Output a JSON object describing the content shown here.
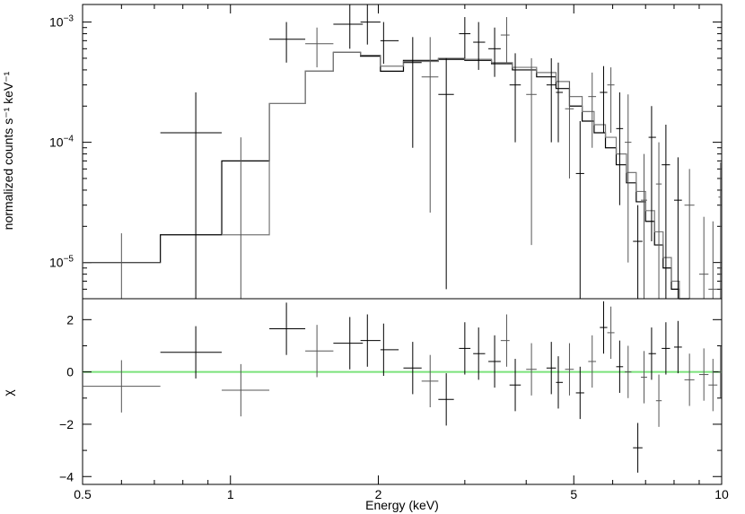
{
  "chart_data": [
    {
      "type": "scatter",
      "panel": "spectrum",
      "xscale": "log",
      "yscale": "log",
      "xlim": [
        0.5,
        10
      ],
      "ylim": [
        5e-06,
        0.0014
      ],
      "ylabel": "normalized counts s⁻¹ keV⁻¹",
      "ytick_labels": [
        {
          "value": 1e-05,
          "base": "10",
          "exp": "−5"
        },
        {
          "value": 0.0001,
          "base": "10",
          "exp": "−4"
        },
        {
          "value": 0.001,
          "base": "10",
          "exp": "−3"
        }
      ],
      "series": [
        {
          "color": "#000000",
          "points": [
            {
              "x": 0.85,
              "xlo": 0.72,
              "xhi": 0.96,
              "y": 0.00012,
              "ylo": 3e-06,
              "yhi": 0.00026
            },
            {
              "x": 1.3,
              "xlo": 1.2,
              "xhi": 1.42,
              "y": 0.00072,
              "ylo": 0.00046,
              "yhi": 0.001
            },
            {
              "x": 1.75,
              "xlo": 1.62,
              "xhi": 1.86,
              "y": 0.00096,
              "ylo": 0.0006,
              "yhi": 0.0014
            },
            {
              "x": 1.9,
              "xlo": 1.84,
              "xhi": 2.02,
              "y": 0.001,
              "ylo": 0.00065,
              "yhi": 0.0014
            },
            {
              "x": 2.05,
              "xlo": 2.02,
              "xhi": 2.2,
              "y": 0.0007,
              "ylo": 0.00045,
              "yhi": 0.001
            },
            {
              "x": 2.35,
              "xlo": 2.25,
              "xhi": 2.45,
              "y": 0.00046,
              "ylo": 9e-05,
              "yhi": 0.00075
            },
            {
              "x": 2.75,
              "xlo": 2.65,
              "xhi": 2.85,
              "y": 0.00025,
              "ylo": 6e-06,
              "yhi": 0.0005
            },
            {
              "x": 3.0,
              "xlo": 2.92,
              "xhi": 3.08,
              "y": 0.0008,
              "ylo": 0.0005,
              "yhi": 0.0011
            },
            {
              "x": 3.2,
              "xlo": 3.12,
              "xhi": 3.3,
              "y": 0.00068,
              "ylo": 0.0004,
              "yhi": 0.001
            },
            {
              "x": 3.45,
              "xlo": 3.35,
              "xhi": 3.55,
              "y": 0.0006,
              "ylo": 0.00035,
              "yhi": 0.0009
            },
            {
              "x": 3.8,
              "xlo": 3.7,
              "xhi": 3.9,
              "y": 0.0003,
              "ylo": 0.0001,
              "yhi": 0.00055
            },
            {
              "x": 4.5,
              "xlo": 4.4,
              "xhi": 4.6,
              "y": 0.0003,
              "ylo": 0.0001,
              "yhi": 0.0005
            },
            {
              "x": 4.65,
              "xlo": 4.6,
              "xhi": 4.75,
              "y": 0.00026,
              "ylo": 0.0001,
              "yhi": 0.00046
            },
            {
              "x": 5.15,
              "xlo": 5.05,
              "xhi": 5.25,
              "y": 5.5e-05,
              "ylo": 5e-06,
              "yhi": 0.00015
            },
            {
              "x": 5.75,
              "xlo": 5.65,
              "xhi": 5.85,
              "y": 0.00026,
              "ylo": 0.00012,
              "yhi": 0.00043
            },
            {
              "x": 6.2,
              "xlo": 6.1,
              "xhi": 6.3,
              "y": 0.00013,
              "ylo": 3e-05,
              "yhi": 0.00026
            },
            {
              "x": 6.75,
              "xlo": 6.6,
              "xhi": 6.9,
              "y": 1.5e-05,
              "ylo": 5e-06,
              "yhi": 3e-05
            },
            {
              "x": 7.2,
              "xlo": 7.1,
              "xhi": 7.35,
              "y": 0.00011,
              "ylo": 1.5e-05,
              "yhi": 0.0002
            },
            {
              "x": 7.7,
              "xlo": 7.55,
              "xhi": 7.85,
              "y": 6.5e-05,
              "ylo": 5e-06,
              "yhi": 0.00014
            },
            {
              "x": 8.15,
              "xlo": 8.0,
              "xhi": 8.3,
              "y": 3.3e-05,
              "ylo": 5e-06,
              "yhi": 7.5e-05
            }
          ]
        },
        {
          "color": "#555555",
          "points": [
            {
              "x": 0.6,
              "xlo": 0.5,
              "xhi": 0.72,
              "y": 1e-05,
              "ylo": 5e-06,
              "yhi": 1.75e-05
            },
            {
              "x": 1.05,
              "xlo": 0.96,
              "xhi": 1.2,
              "y": 5e-06,
              "ylo": 5e-06,
              "yhi": 0.00011
            },
            {
              "x": 1.5,
              "xlo": 1.42,
              "xhi": 1.62,
              "y": 0.00066,
              "ylo": 0.00042,
              "yhi": 0.0009
            },
            {
              "x": 2.55,
              "xlo": 2.45,
              "xhi": 2.65,
              "y": 0.00035,
              "ylo": 2.6e-05,
              "yhi": 0.00075
            },
            {
              "x": 3.65,
              "xlo": 3.55,
              "xhi": 3.7,
              "y": 0.00078,
              "ylo": 0.00045,
              "yhi": 0.0011
            },
            {
              "x": 4.1,
              "xlo": 4.0,
              "xhi": 4.2,
              "y": 0.00025,
              "ylo": 1.4e-05,
              "yhi": 0.0005
            },
            {
              "x": 4.9,
              "xlo": 4.8,
              "xhi": 5.0,
              "y": 0.00019,
              "ylo": 5e-05,
              "yhi": 0.00032
            },
            {
              "x": 5.45,
              "xlo": 5.35,
              "xhi": 5.55,
              "y": 0.00024,
              "ylo": 9e-05,
              "yhi": 0.00038
            },
            {
              "x": 5.95,
              "xlo": 5.85,
              "xhi": 6.05,
              "y": 0.0003,
              "ylo": 0.00012,
              "yhi": 0.00042
            },
            {
              "x": 6.45,
              "xlo": 6.35,
              "xhi": 6.55,
              "y": 0.0001,
              "ylo": 1e-05,
              "yhi": 0.00025
            },
            {
              "x": 6.95,
              "xlo": 6.85,
              "xhi": 7.05,
              "y": 3.3e-05,
              "ylo": 5e-06,
              "yhi": 8e-05
            },
            {
              "x": 7.45,
              "xlo": 7.35,
              "xhi": 7.55,
              "y": 4.5e-05,
              "ylo": 5e-06,
              "yhi": 0.0001
            },
            {
              "x": 8.6,
              "xlo": 8.4,
              "xhi": 8.8,
              "y": 3e-05,
              "ylo": 5e-06,
              "yhi": 6e-05
            },
            {
              "x": 9.2,
              "xlo": 9.0,
              "xhi": 9.4,
              "y": 8e-06,
              "ylo": 5e-06,
              "yhi": 2.4e-05
            },
            {
              "x": 9.6,
              "xlo": 9.4,
              "xhi": 9.8,
              "y": 6e-06,
              "ylo": 5e-06,
              "yhi": 2.2e-05
            },
            {
              "x": 9.95,
              "xlo": 9.85,
              "xhi": 10.0,
              "y": 3.5e-05,
              "ylo": 5e-06,
              "yhi": 6.8e-05
            }
          ]
        }
      ],
      "models": [
        {
          "color": "#000000",
          "steps": [
            [
              0.5,
              0.72,
              1e-05
            ],
            [
              0.72,
              0.96,
              1.7e-05
            ],
            [
              0.96,
              1.2,
              7e-05
            ],
            [
              1.2,
              1.42,
              0.00021
            ],
            [
              1.42,
              1.62,
              0.00039
            ],
            [
              1.62,
              1.84,
              0.00056
            ],
            [
              1.84,
              2.02,
              0.00052
            ],
            [
              2.02,
              2.25,
              0.00039
            ],
            [
              2.25,
              2.65,
              0.00048
            ],
            [
              2.65,
              3.0,
              0.00049
            ],
            [
              3.0,
              3.4,
              0.00048
            ],
            [
              3.4,
              3.75,
              0.00045
            ],
            [
              3.75,
              4.2,
              0.0004
            ],
            [
              4.2,
              4.6,
              0.00035
            ],
            [
              4.6,
              4.9,
              0.00028
            ],
            [
              4.9,
              5.2,
              0.0002
            ],
            [
              5.2,
              5.5,
              0.00015
            ],
            [
              5.5,
              5.8,
              0.00012
            ],
            [
              5.8,
              6.1,
              9e-05
            ],
            [
              6.1,
              6.4,
              6.5e-05
            ],
            [
              6.4,
              6.7,
              4.6e-05
            ],
            [
              6.7,
              7.0,
              3.2e-05
            ],
            [
              7.0,
              7.3,
              2.2e-05
            ],
            [
              7.3,
              7.6,
              1.4e-05
            ],
            [
              7.6,
              7.9,
              9e-06
            ],
            [
              7.9,
              8.2,
              6e-06
            ],
            [
              8.2,
              8.6,
              4.5e-06
            ]
          ]
        },
        {
          "color": "#777777",
          "steps": [
            [
              0.96,
              1.2,
              1.7e-05
            ],
            [
              1.2,
              1.42,
              0.00021
            ],
            [
              1.42,
              1.62,
              0.00039
            ],
            [
              1.62,
              1.84,
              0.00056
            ],
            [
              1.84,
              2.02,
              0.00053
            ],
            [
              2.02,
              2.25,
              0.00043
            ],
            [
              2.25,
              2.65,
              0.00047
            ],
            [
              2.65,
              3.0,
              0.0005
            ],
            [
              3.0,
              3.4,
              0.00049
            ],
            [
              3.4,
              3.75,
              0.00046
            ],
            [
              3.75,
              4.2,
              0.00042
            ],
            [
              4.2,
              4.6,
              0.00038
            ],
            [
              4.6,
              4.9,
              0.00032
            ],
            [
              4.9,
              5.2,
              0.00024
            ],
            [
              5.2,
              5.5,
              0.00018
            ],
            [
              5.5,
              5.8,
              0.00014
            ],
            [
              5.8,
              6.1,
              0.00011
            ],
            [
              6.1,
              6.4,
              8e-05
            ],
            [
              6.4,
              6.7,
              5.6e-05
            ],
            [
              6.7,
              7.0,
              3.9e-05
            ],
            [
              7.0,
              7.3,
              2.7e-05
            ],
            [
              7.3,
              7.6,
              1.8e-05
            ],
            [
              7.6,
              7.9,
              1.1e-05
            ],
            [
              7.9,
              8.2,
              7e-06
            ],
            [
              8.2,
              8.6,
              5e-06
            ]
          ]
        }
      ]
    },
    {
      "type": "scatter",
      "panel": "residuals",
      "xscale": "log",
      "xlim": [
        0.5,
        10
      ],
      "ylim": [
        -4.3,
        2.8
      ],
      "ylabel": "χ",
      "xlabel": "Energy (keV)",
      "yticks": [
        -4,
        -2,
        0,
        2
      ],
      "ytick_labels": [
        "−4",
        "−2",
        "0",
        "2"
      ],
      "xticks": [
        0.5,
        1,
        2,
        5,
        10
      ],
      "xtick_labels": [
        "0.5",
        "1",
        "2",
        "5",
        "10"
      ],
      "zero_line_color": "#7be27b",
      "series": [
        {
          "color": "#000000",
          "points": [
            {
              "x": 0.85,
              "xlo": 0.72,
              "xhi": 0.96,
              "y": 0.75,
              "ylo": -0.25,
              "yhi": 1.75
            },
            {
              "x": 1.3,
              "xlo": 1.2,
              "xhi": 1.42,
              "y": 1.65,
              "ylo": 0.65,
              "yhi": 2.65
            },
            {
              "x": 1.75,
              "xlo": 1.62,
              "xhi": 1.86,
              "y": 1.1,
              "ylo": 0.1,
              "yhi": 2.1
            },
            {
              "x": 1.9,
              "xlo": 1.84,
              "xhi": 2.02,
              "y": 1.2,
              "ylo": 0.2,
              "yhi": 2.2
            },
            {
              "x": 2.05,
              "xlo": 2.02,
              "xhi": 2.2,
              "y": 0.85,
              "ylo": -0.15,
              "yhi": 1.85
            },
            {
              "x": 2.35,
              "xlo": 2.25,
              "xhi": 2.45,
              "y": 0.15,
              "ylo": -0.85,
              "yhi": 1.15
            },
            {
              "x": 2.75,
              "xlo": 2.65,
              "xhi": 2.85,
              "y": -1.05,
              "ylo": -2.05,
              "yhi": -0.05
            },
            {
              "x": 3.0,
              "xlo": 2.92,
              "xhi": 3.08,
              "y": 0.9,
              "ylo": -0.1,
              "yhi": 1.9
            },
            {
              "x": 3.2,
              "xlo": 3.12,
              "xhi": 3.3,
              "y": 0.7,
              "ylo": -0.3,
              "yhi": 1.7
            },
            {
              "x": 3.45,
              "xlo": 3.35,
              "xhi": 3.55,
              "y": 0.4,
              "ylo": -0.6,
              "yhi": 1.4
            },
            {
              "x": 3.8,
              "xlo": 3.7,
              "xhi": 3.9,
              "y": -0.5,
              "ylo": -1.5,
              "yhi": 0.5
            },
            {
              "x": 4.5,
              "xlo": 4.4,
              "xhi": 4.6,
              "y": 0.15,
              "ylo": -0.85,
              "yhi": 1.15
            },
            {
              "x": 4.65,
              "xlo": 4.6,
              "xhi": 4.75,
              "y": -0.4,
              "ylo": -1.4,
              "yhi": 0.6
            },
            {
              "x": 5.15,
              "xlo": 5.05,
              "xhi": 5.25,
              "y": -0.8,
              "ylo": -1.8,
              "yhi": 0.2
            },
            {
              "x": 5.75,
              "xlo": 5.65,
              "xhi": 5.85,
              "y": 1.7,
              "ylo": 0.7,
              "yhi": 2.7
            },
            {
              "x": 6.2,
              "xlo": 6.1,
              "xhi": 6.3,
              "y": 0.2,
              "ylo": -0.8,
              "yhi": 1.2
            },
            {
              "x": 6.75,
              "xlo": 6.6,
              "xhi": 6.9,
              "y": -2.9,
              "ylo": -3.85,
              "yhi": -1.95
            },
            {
              "x": 7.2,
              "xlo": 7.1,
              "xhi": 7.35,
              "y": 0.7,
              "ylo": -0.3,
              "yhi": 1.7
            },
            {
              "x": 7.7,
              "xlo": 7.55,
              "xhi": 7.85,
              "y": 0.9,
              "ylo": -0.1,
              "yhi": 1.9
            },
            {
              "x": 8.15,
              "xlo": 8.0,
              "xhi": 8.3,
              "y": 0.95,
              "ylo": -0.05,
              "yhi": 1.95
            }
          ]
        },
        {
          "color": "#555555",
          "points": [
            {
              "x": 0.6,
              "xlo": 0.5,
              "xhi": 0.72,
              "y": -0.55,
              "ylo": -1.55,
              "yhi": 0.45
            },
            {
              "x": 1.05,
              "xlo": 0.96,
              "xhi": 1.2,
              "y": -0.7,
              "ylo": -1.7,
              "yhi": 0.3
            },
            {
              "x": 1.5,
              "xlo": 1.42,
              "xhi": 1.62,
              "y": 0.8,
              "ylo": -0.2,
              "yhi": 1.8
            },
            {
              "x": 2.55,
              "xlo": 2.45,
              "xhi": 2.65,
              "y": -0.35,
              "ylo": -1.35,
              "yhi": 0.65
            },
            {
              "x": 3.65,
              "xlo": 3.55,
              "xhi": 3.7,
              "y": 1.2,
              "ylo": 0.2,
              "yhi": 2.2
            },
            {
              "x": 4.1,
              "xlo": 4.0,
              "xhi": 4.2,
              "y": 0.1,
              "ylo": -0.9,
              "yhi": 1.1
            },
            {
              "x": 4.9,
              "xlo": 4.8,
              "xhi": 5.0,
              "y": 0.1,
              "ylo": -0.9,
              "yhi": 1.1
            },
            {
              "x": 5.45,
              "xlo": 5.35,
              "xhi": 5.55,
              "y": 0.4,
              "ylo": -0.6,
              "yhi": 1.4
            },
            {
              "x": 5.95,
              "xlo": 5.85,
              "xhi": 6.05,
              "y": 1.5,
              "ylo": 0.5,
              "yhi": 2.5
            },
            {
              "x": 6.45,
              "xlo": 6.35,
              "xhi": 6.55,
              "y": 0.0,
              "ylo": -1.0,
              "yhi": 1.0
            },
            {
              "x": 6.95,
              "xlo": 6.85,
              "xhi": 7.05,
              "y": -0.2,
              "ylo": -1.2,
              "yhi": 0.8
            },
            {
              "x": 7.45,
              "xlo": 7.35,
              "xhi": 7.55,
              "y": -1.1,
              "ylo": -2.1,
              "yhi": -0.1
            },
            {
              "x": 8.6,
              "xlo": 8.4,
              "xhi": 8.8,
              "y": -0.3,
              "ylo": -1.3,
              "yhi": 0.7
            },
            {
              "x": 9.2,
              "xlo": 9.0,
              "xhi": 9.4,
              "y": -0.1,
              "ylo": -1.1,
              "yhi": 0.9
            },
            {
              "x": 9.6,
              "xlo": 9.4,
              "xhi": 9.8,
              "y": -0.5,
              "ylo": -1.5,
              "yhi": 0.5
            },
            {
              "x": 9.95,
              "xlo": 9.85,
              "xhi": 10.0,
              "y": 0.0,
              "ylo": -1.0,
              "yhi": 1.0
            }
          ]
        }
      ]
    }
  ]
}
